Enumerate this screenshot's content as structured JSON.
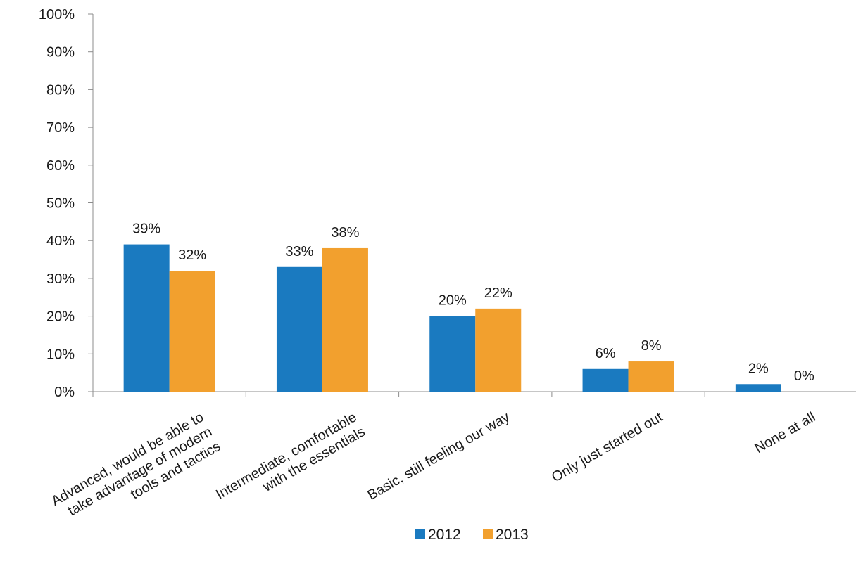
{
  "chart_data": {
    "type": "bar",
    "title": "",
    "xlabel": "",
    "ylabel": "",
    "categories": [
      "Advanced, would be able to take advantage of modern tools and tactics",
      "Intermediate, comfortable with the essentials",
      "Basic, still feeling our way",
      "Only just started out",
      "None at all"
    ],
    "category_label_lines": [
      [
        "Advanced, would be able to",
        "take advantage of modern",
        "tools and tactics"
      ],
      [
        "Intermediate, comfortable",
        "with the essentials"
      ],
      [
        "Basic, still feeling our way"
      ],
      [
        "Only just started out"
      ],
      [
        "None at all"
      ]
    ],
    "series": [
      {
        "name": "2012",
        "color": "#1a7ac0",
        "values": [
          39,
          33,
          20,
          6,
          2
        ],
        "labels": [
          "39%",
          "33%",
          "20%",
          "6%",
          "2%"
        ]
      },
      {
        "name": "2013",
        "color": "#f2a02e",
        "values": [
          32,
          38,
          22,
          8,
          0
        ],
        "labels": [
          "32%",
          "38%",
          "22%",
          "8%",
          "0%"
        ]
      }
    ],
    "y_ticks": [
      "0%",
      "10%",
      "20%",
      "30%",
      "40%",
      "50%",
      "60%",
      "70%",
      "80%",
      "90%",
      "100%"
    ],
    "ylim": [
      0,
      100
    ],
    "grid": false,
    "legend_position": "bottom-center"
  }
}
